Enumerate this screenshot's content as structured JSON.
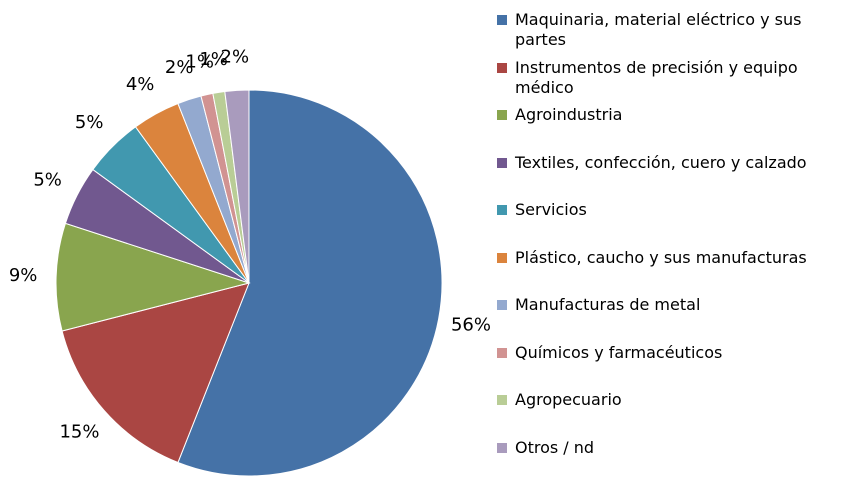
{
  "chart_data": {
    "type": "pie",
    "categories": [
      "Maquinaria, material eléctrico y sus partes",
      "Instrumentos de precisión y equipo médico",
      "Agroindustria",
      "Textiles, confección, cuero y calzado",
      "Servicios",
      "Plástico, caucho y sus manufacturas",
      "Manufacturas de metal",
      "Químicos y farmacéuticos",
      "Agropecuario",
      "Otros / nd"
    ],
    "values": [
      56,
      15,
      9,
      5,
      5,
      4,
      2,
      1,
      1,
      2
    ],
    "value_labels": [
      "56%",
      "15%",
      "9%",
      "5%",
      "5%",
      "4%",
      "2%",
      "1%",
      "1%",
      "2%"
    ],
    "colors": [
      "#4572a7",
      "#aa4643",
      "#89a54e",
      "#71588f",
      "#4198af",
      "#db843d",
      "#93a9cf",
      "#d19392",
      "#b9cd96",
      "#a99bbd"
    ],
    "legend": "right"
  }
}
